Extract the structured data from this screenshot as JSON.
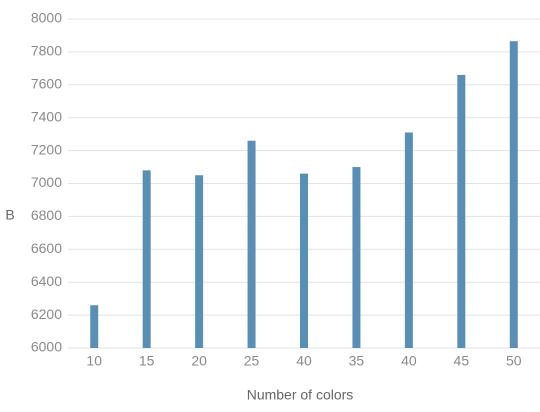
{
  "chart_data": {
    "type": "bar",
    "x_label": "Number of colors",
    "y_label": "B",
    "categories": [
      "10",
      "15",
      "20",
      "25",
      "40",
      "35",
      "40",
      "45",
      "50"
    ],
    "values": [
      6260,
      7080,
      7050,
      7260,
      7060,
      7100,
      7310,
      7660,
      7865
    ],
    "color": "#5a8fb3",
    "ylim": [
      6000,
      8000
    ],
    "yticks": [
      6000,
      6200,
      6400,
      6600,
      6800,
      7000,
      7200,
      7400,
      7600,
      7800,
      8000
    ],
    "grid": true
  }
}
